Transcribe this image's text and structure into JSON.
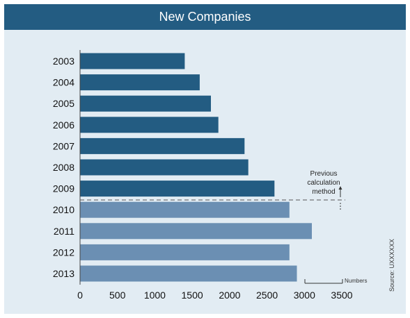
{
  "chart_data": {
    "type": "bar",
    "orientation": "horizontal",
    "title": "New Companies",
    "categories": [
      "2003",
      "2004",
      "2005",
      "2006",
      "2007",
      "2008",
      "2009",
      "2010",
      "2011",
      "2012",
      "2013"
    ],
    "values": [
      1400,
      1600,
      1750,
      1850,
      2200,
      2250,
      2600,
      2800,
      3100,
      2800,
      2900
    ],
    "xlim": [
      0,
      3500
    ],
    "x_ticks": [
      "0",
      "500",
      "1000",
      "1500",
      "2000",
      "2500",
      "3000",
      "3500"
    ],
    "xlabel": "",
    "ylabel": "",
    "grid": false,
    "colors": {
      "previous_method": "#235c82",
      "new_method": "#6b8fb3",
      "header": "#235c82",
      "background": "#e2ecf3"
    },
    "method_split_after": "2009",
    "annotation": [
      "Previous",
      "calculation",
      "method"
    ],
    "scale_label": "Numbers",
    "source": "Source: UXXXXXX"
  }
}
